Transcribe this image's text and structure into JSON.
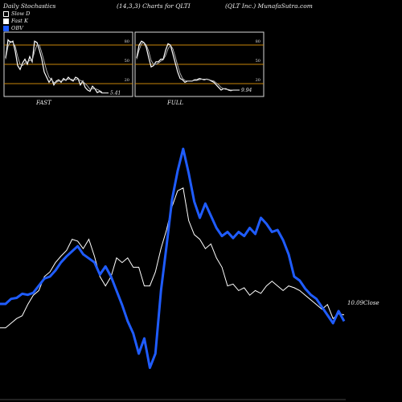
{
  "header": {
    "left": "Daily Stochastics",
    "middle": "(14,3,3) Charts for QLTI",
    "right": "(QLT Inc.) MunafaSutra.com"
  },
  "legend": [
    {
      "label": "Slow D",
      "color": "#000000"
    },
    {
      "label": "Fast K",
      "color": "#ffffff"
    },
    {
      "label": "OBV",
      "color": "#1f5cff"
    }
  ],
  "chart_data": [
    {
      "type": "line",
      "panel": "FAST",
      "title": "FAST",
      "ylim": [
        0,
        100
      ],
      "yticks": [
        20,
        50,
        80
      ],
      "reference_lines": [
        20,
        50,
        80
      ],
      "last_value_label": "5.41",
      "series": [
        {
          "name": "Fast K",
          "values": [
            60,
            88,
            84,
            86,
            70,
            48,
            42,
            52,
            58,
            50,
            62,
            54,
            86,
            84,
            72,
            58,
            38,
            30,
            22,
            28,
            18,
            24,
            26,
            22,
            28,
            25,
            30,
            26,
            24,
            30,
            28,
            18,
            24,
            14,
            10,
            8,
            16,
            12,
            6,
            8,
            5.41
          ]
        },
        {
          "name": "Slow D",
          "values": [
            58,
            78,
            86,
            84,
            78,
            62,
            50,
            48,
            52,
            54,
            56,
            56,
            70,
            80,
            80,
            68,
            54,
            40,
            30,
            26,
            22,
            22,
            24,
            24,
            25,
            26,
            27,
            27,
            26,
            26,
            27,
            25,
            23,
            20,
            16,
            11,
            12,
            12,
            11,
            9,
            7
          ]
        }
      ]
    },
    {
      "type": "line",
      "panel": "FULL",
      "title": "FULL",
      "ylim": [
        0,
        100
      ],
      "yticks": [
        20,
        50,
        80
      ],
      "reference_lines": [
        20,
        50,
        80
      ],
      "last_value_label": "9.94",
      "series": [
        {
          "name": "Full K",
          "values": [
            60,
            80,
            86,
            84,
            76,
            60,
            46,
            48,
            54,
            54,
            58,
            58,
            72,
            82,
            80,
            66,
            52,
            38,
            28,
            26,
            22,
            24,
            24,
            24,
            26,
            26,
            28,
            27,
            26,
            27,
            26,
            24,
            22,
            18,
            14,
            10,
            12,
            12,
            10,
            9,
            9.94
          ]
        },
        {
          "name": "Full D",
          "values": [
            58,
            72,
            82,
            84,
            80,
            70,
            56,
            50,
            50,
            52,
            55,
            57,
            64,
            74,
            80,
            74,
            62,
            48,
            36,
            28,
            25,
            24,
            24,
            24,
            25,
            25,
            26,
            27,
            27,
            27,
            26,
            25,
            24,
            21,
            18,
            14,
            12,
            11,
            11,
            10,
            10
          ]
        }
      ]
    },
    {
      "type": "line",
      "panel": "PRICE_OBV",
      "right_label": "10.09Close",
      "series": [
        {
          "name": "Close",
          "values": [
            9.95,
            9.95,
            10.0,
            10.05,
            10.08,
            10.2,
            10.3,
            10.35,
            10.5,
            10.55,
            10.65,
            10.72,
            10.78,
            10.9,
            10.88,
            10.8,
            10.9,
            10.72,
            10.5,
            10.4,
            10.5,
            10.7,
            10.65,
            10.7,
            10.6,
            10.6,
            10.4,
            10.4,
            10.55,
            10.8,
            11.0,
            11.25,
            11.42,
            11.45,
            11.1,
            10.95,
            10.9,
            10.8,
            10.85,
            10.7,
            10.6,
            10.4,
            10.42,
            10.35,
            10.38,
            10.3,
            10.35,
            10.32,
            10.4,
            10.45,
            10.4,
            10.35,
            10.4,
            10.38,
            10.35,
            10.3,
            10.25,
            10.2,
            10.15,
            10.2,
            10.05,
            10.1,
            10.09
          ]
        },
        {
          "name": "OBV",
          "values": [
            150,
            150,
            200,
            210,
            250,
            240,
            260,
            330,
            400,
            420,
            480,
            560,
            620,
            670,
            720,
            640,
            600,
            560,
            440,
            520,
            420,
            280,
            140,
            -20,
            -140,
            -340,
            -190,
            -480,
            -340,
            280,
            720,
            1180,
            1460,
            1680,
            1440,
            1160,
            1000,
            1140,
            1020,
            900,
            820,
            860,
            800,
            860,
            820,
            900,
            840,
            1000,
            940,
            860,
            880,
            780,
            640,
            420,
            380,
            300,
            240,
            200,
            120,
            40,
            -40,
            80,
            -20
          ]
        }
      ]
    }
  ]
}
